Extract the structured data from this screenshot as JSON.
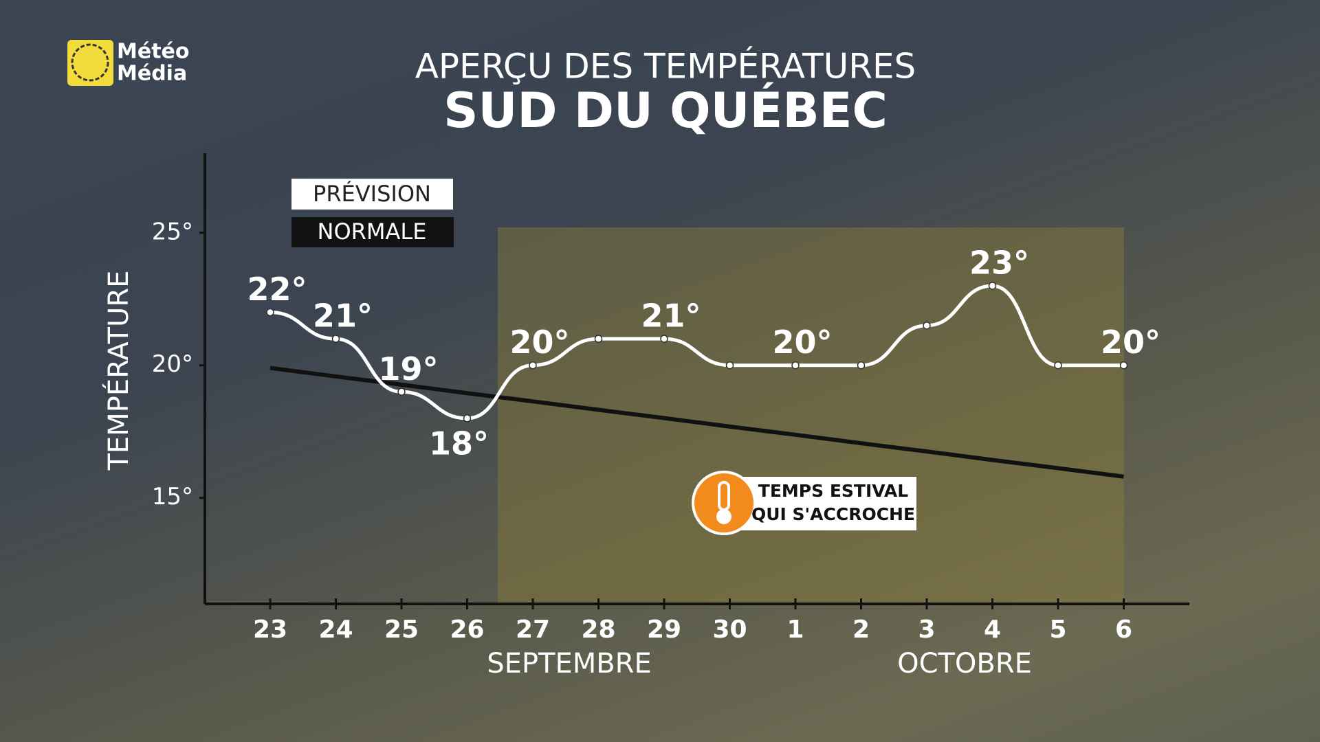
{
  "logo": [
    "Météo",
    "Média"
  ],
  "chart_data": {
    "type": "line",
    "title": "APERÇU DES TEMPÉRATURES",
    "subtitle": "SUD DU QUÉBEC",
    "ylabel": "TEMPÉRATURE",
    "categories": [
      "23",
      "24",
      "25",
      "26",
      "27",
      "28",
      "29",
      "30",
      "1",
      "2",
      "3",
      "4",
      "5",
      "6"
    ],
    "months": [
      "SEPTEMBRE",
      "OCTOBRE"
    ],
    "series": [
      {
        "name": "PRÉVISION",
        "color": "#ffffff",
        "values": [
          22,
          21,
          19,
          18,
          20,
          21,
          21,
          20,
          20,
          20,
          21.5,
          23,
          20,
          20
        ],
        "value_labels": [
          "22°",
          "21°",
          "19°",
          "18°",
          "20°",
          null,
          "21°",
          null,
          "20°",
          null,
          null,
          "23°",
          null,
          "20°"
        ]
      },
      {
        "name": "NORMALE",
        "color": "#111111",
        "values": [
          19.9,
          19.58,
          19.27,
          18.95,
          18.64,
          18.32,
          18.01,
          17.69,
          17.38,
          17.06,
          16.75,
          16.43,
          16.12,
          15.8
        ]
      }
    ],
    "ylim": [
      11,
      28
    ],
    "yticks": [
      {
        "value": 15,
        "label": "15°"
      },
      {
        "value": 20,
        "label": "20°"
      },
      {
        "value": 25,
        "label": "25°"
      }
    ],
    "annotation": [
      "TEMPS ESTIVAL",
      "QUI S'ACCROCHE"
    ]
  }
}
